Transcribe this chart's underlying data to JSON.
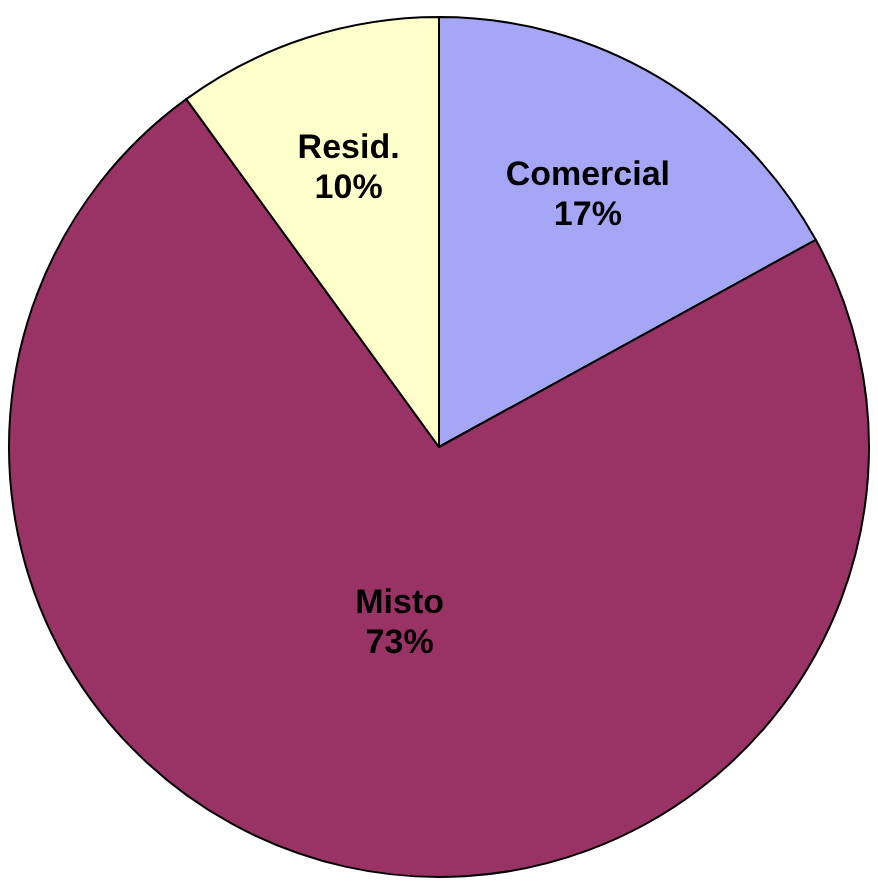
{
  "chart_data": {
    "type": "pie",
    "categories": [
      "Comercial",
      "Misto",
      "Resid."
    ],
    "values": [
      17,
      73,
      10
    ],
    "value_labels": [
      "17%",
      "73%",
      "10%"
    ],
    "colors": [
      "#a6a6f7",
      "#993366",
      "#ffffcc"
    ],
    "legend": false
  }
}
